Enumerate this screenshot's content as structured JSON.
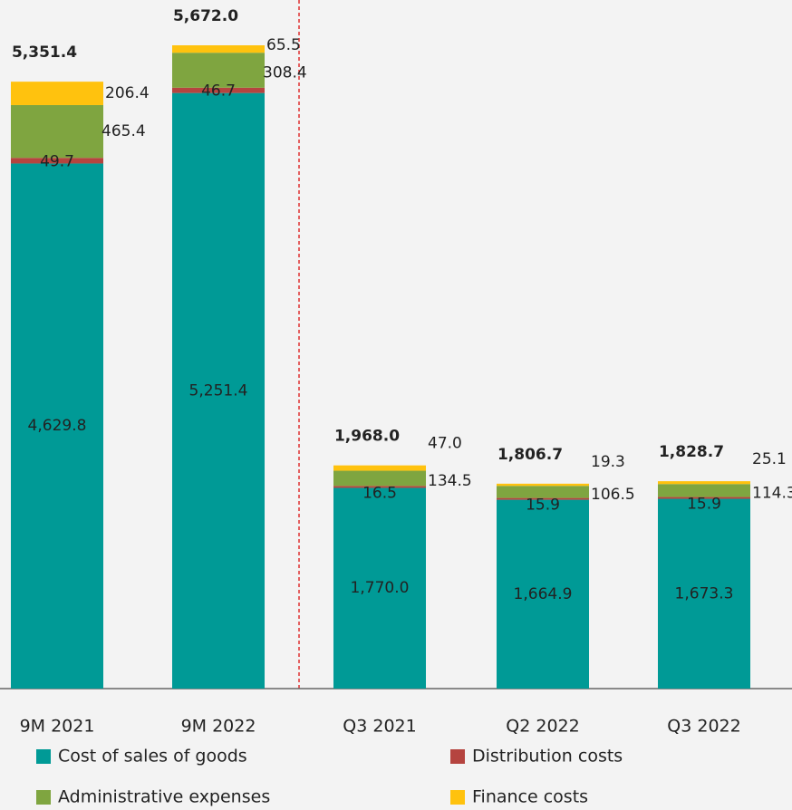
{
  "chart_data": {
    "type": "stacked_bar",
    "categories": [
      "9M 2021",
      "9M 2022",
      "Q3 2021",
      "Q2 2022",
      "Q3 2022"
    ],
    "series": [
      {
        "name": "Cost of sales of goods",
        "color": "#009a96",
        "values": [
          4629.8,
          5251.4,
          1770.0,
          1664.9,
          1673.3
        ],
        "value_labels": [
          "4,629.8",
          "5,251.4",
          "1,770.0",
          "1,664.9",
          "1,673.3"
        ]
      },
      {
        "name": "Distribution costs",
        "color": "#b5443f",
        "values": [
          49.7,
          46.7,
          16.5,
          15.9,
          15.9
        ],
        "value_labels": [
          "49.7",
          "46.7",
          "16.5",
          "15.9",
          "15.9"
        ]
      },
      {
        "name": "Administrative expenses",
        "color": "#7fa540",
        "values": [
          465.4,
          308.4,
          134.5,
          106.5,
          114.3
        ],
        "value_labels": [
          "465.4",
          "308.4",
          "134.5",
          "106.5",
          "114.3"
        ]
      },
      {
        "name": "Finance costs",
        "color": "#ffc20e",
        "values": [
          206.4,
          65.5,
          47.0,
          19.3,
          25.1
        ],
        "value_labels": [
          "206.4",
          "65.5",
          "47.0",
          "19.3",
          "25.1"
        ]
      }
    ],
    "totals": [
      5351.4,
      5672.0,
      1968.0,
      1806.7,
      1828.7
    ],
    "total_labels": [
      "5,351.4",
      "5,672.0",
      "1,968.0",
      "1,806.7",
      "1,828.7"
    ]
  }
}
